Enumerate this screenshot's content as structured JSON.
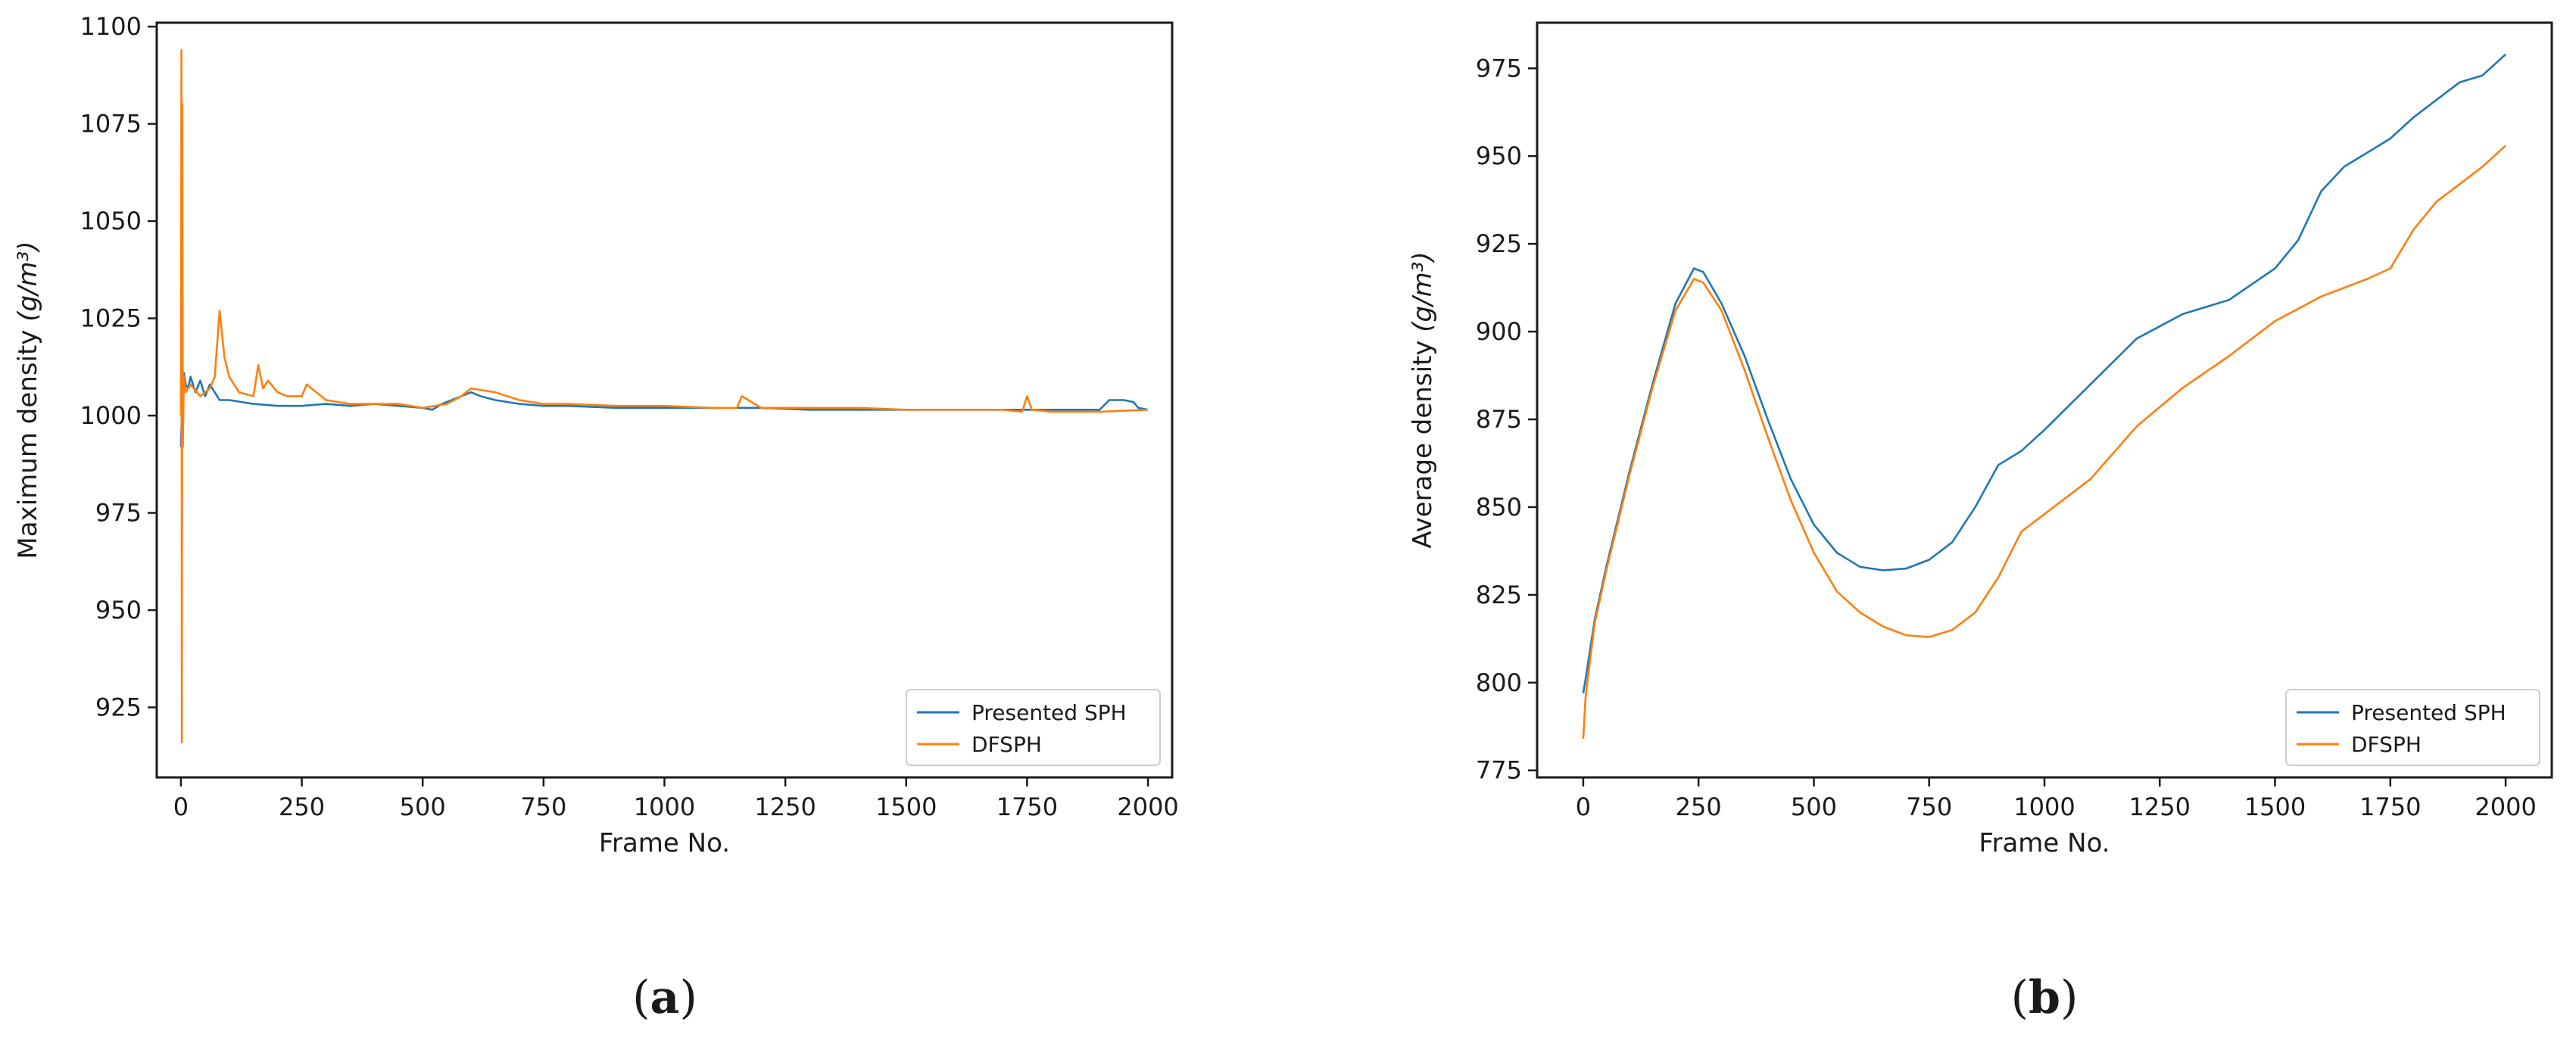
{
  "panels": [
    "(a)",
    "(b)"
  ],
  "colors": {
    "presented": "#1f77b4",
    "dfsph": "#ff7f0e"
  },
  "chart_data": [
    {
      "type": "line",
      "title": "",
      "panel_label": "(a)",
      "xlabel": "Frame No.",
      "ylabel": "Maximum density",
      "ylabel_unit": "(g/m³)",
      "xlim": [
        -50,
        2050
      ],
      "ylim": [
        907,
        1101
      ],
      "xticks": [
        0,
        250,
        500,
        750,
        1000,
        1250,
        1500,
        1750,
        2000
      ],
      "yticks": [
        925,
        950,
        975,
        1000,
        1025,
        1050,
        1075,
        1100
      ],
      "grid": false,
      "legend": "bottom-right",
      "series": [
        {
          "name": "Presented SPH",
          "color": "#1f77b4",
          "x": [
            0,
            3,
            6,
            10,
            15,
            20,
            30,
            40,
            50,
            60,
            70,
            80,
            100,
            150,
            200,
            250,
            300,
            350,
            400,
            450,
            500,
            520,
            540,
            560,
            580,
            600,
            620,
            650,
            700,
            750,
            800,
            900,
            1000,
            1100,
            1200,
            1300,
            1400,
            1500,
            1600,
            1700,
            1800,
            1900,
            1920,
            1950,
            1970,
            1980,
            2000
          ],
          "values": [
            992,
            1005,
            1011,
            1008,
            1007,
            1010,
            1006,
            1009,
            1005,
            1008,
            1006,
            1004,
            1004,
            1003,
            1002.5,
            1002.5,
            1003,
            1002.5,
            1003,
            1002.5,
            1002,
            1001.5,
            1003,
            1004,
            1005,
            1006,
            1005,
            1004,
            1003,
            1002.5,
            1002.5,
            1002,
            1002,
            1002,
            1002,
            1001.5,
            1001.5,
            1001.5,
            1001.5,
            1001.5,
            1001.5,
            1001.5,
            1004,
            1004,
            1003.5,
            1002,
            1001.5
          ]
        },
        {
          "name": "DFSPH",
          "color": "#ff7f0e",
          "x": [
            0,
            1,
            2,
            3,
            4,
            6,
            10,
            20,
            40,
            60,
            70,
            80,
            90,
            100,
            120,
            150,
            160,
            170,
            180,
            200,
            220,
            250,
            260,
            300,
            350,
            400,
            450,
            500,
            550,
            580,
            600,
            650,
            700,
            750,
            800,
            900,
            1000,
            1100,
            1150,
            1160,
            1200,
            1300,
            1400,
            1500,
            1600,
            1700,
            1740,
            1750,
            1760,
            1800,
            1900,
            2000
          ],
          "values": [
            1000,
            1094,
            916,
            1080,
            992,
            1010,
            1006,
            1008,
            1005,
            1007,
            1010,
            1027,
            1015,
            1010,
            1006,
            1005,
            1013,
            1007,
            1009,
            1006,
            1005,
            1005,
            1008,
            1004,
            1003,
            1003,
            1003,
            1002,
            1003,
            1005,
            1007,
            1006,
            1004,
            1003,
            1003,
            1002.5,
            1002.5,
            1002,
            1002,
            1005,
            1002,
            1002,
            1002,
            1001.5,
            1001.5,
            1001.5,
            1001,
            1005,
            1001.5,
            1001,
            1001,
            1001.5
          ]
        }
      ]
    },
    {
      "type": "line",
      "title": "",
      "panel_label": "(b)",
      "xlabel": "Frame No.",
      "ylabel": "Average density",
      "ylabel_unit": "(g/m³)",
      "xlim": [
        -100,
        2100
      ],
      "ylim": [
        773,
        988
      ],
      "xticks": [
        0,
        250,
        500,
        750,
        1000,
        1250,
        1500,
        1750,
        2000
      ],
      "yticks": [
        775,
        800,
        825,
        850,
        875,
        900,
        925,
        950,
        975
      ],
      "grid": false,
      "legend": "bottom-right",
      "series": [
        {
          "name": "Presented SPH",
          "color": "#1f77b4",
          "x": [
            0,
            5,
            25,
            50,
            100,
            150,
            200,
            240,
            260,
            300,
            350,
            400,
            450,
            500,
            550,
            600,
            650,
            700,
            750,
            800,
            850,
            900,
            950,
            1000,
            1100,
            1200,
            1300,
            1400,
            1500,
            1550,
            1600,
            1650,
            1700,
            1750,
            1800,
            1850,
            1900,
            1950,
            2000
          ],
          "values": [
            797,
            801,
            818,
            833,
            860,
            885,
            908,
            918,
            917,
            908,
            893,
            875,
            858,
            845,
            837,
            833,
            832,
            832.5,
            835,
            840,
            850,
            862,
            866,
            872,
            885,
            898,
            905,
            909,
            918,
            926,
            940,
            947,
            951,
            955,
            961,
            966,
            971,
            973,
            979
          ]
        },
        {
          "name": "DFSPH",
          "color": "#ff7f0e",
          "x": [
            0,
            5,
            25,
            50,
            100,
            150,
            200,
            240,
            260,
            300,
            350,
            400,
            450,
            500,
            550,
            600,
            650,
            700,
            750,
            800,
            850,
            900,
            950,
            1000,
            1100,
            1200,
            1300,
            1400,
            1500,
            1600,
            1700,
            1750,
            1800,
            1850,
            1900,
            1950,
            2000
          ],
          "values": [
            784,
            796,
            817,
            832,
            859,
            884,
            906,
            915,
            914,
            906,
            889,
            870,
            852,
            837,
            826,
            820,
            816,
            813.5,
            813,
            815,
            820,
            830,
            843,
            848,
            858,
            873,
            884,
            893,
            903,
            910,
            915,
            918,
            929,
            937,
            942,
            947,
            953
          ]
        }
      ]
    }
  ]
}
